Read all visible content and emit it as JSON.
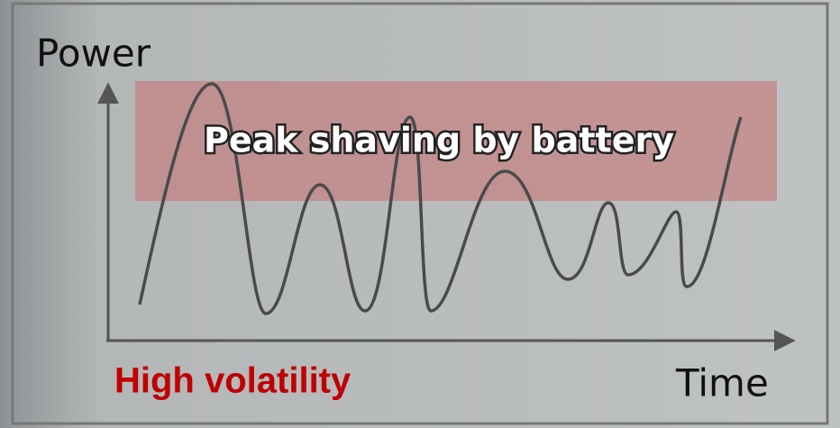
{
  "axes": {
    "y_label": "Power",
    "x_label": "Time"
  },
  "band": {
    "label": "Peak shaving by battery"
  },
  "caption": "High volatility"
}
